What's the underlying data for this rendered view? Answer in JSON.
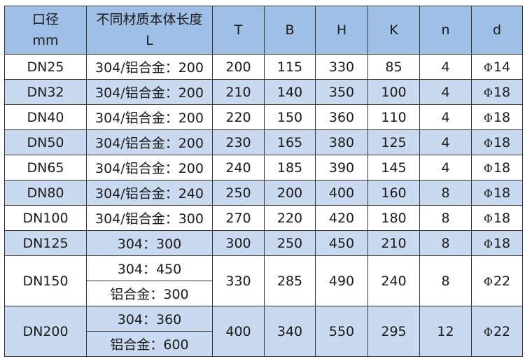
{
  "header": {
    "caliber": [
      "口径",
      "mm"
    ],
    "length": [
      "不同材质本体长度",
      "L"
    ],
    "T": "T",
    "B": "B",
    "H": "H",
    "K": "K",
    "n": "n",
    "d": "d"
  },
  "phi_symbol": "Φ",
  "rows": [
    {
      "dn": "DN25",
      "L": [
        "304/铝合金：200"
      ],
      "T": "200",
      "B": "115",
      "H": "330",
      "K": "85",
      "n": "4",
      "d": "14"
    },
    {
      "dn": "DN32",
      "L": [
        "304/铝合金：200"
      ],
      "T": "210",
      "B": "140",
      "H": "350",
      "K": "100",
      "n": "4",
      "d": "18"
    },
    {
      "dn": "DN40",
      "L": [
        "304/铝合金：200"
      ],
      "T": "220",
      "B": "150",
      "H": "360",
      "K": "110",
      "n": "4",
      "d": "18"
    },
    {
      "dn": "DN50",
      "L": [
        "304/铝合金：200"
      ],
      "T": "230",
      "B": "165",
      "H": "380",
      "K": "125",
      "n": "4",
      "d": "18"
    },
    {
      "dn": "DN65",
      "L": [
        "304/铝合金：200"
      ],
      "T": "240",
      "B": "185",
      "H": "390",
      "K": "145",
      "n": "4",
      "d": "18"
    },
    {
      "dn": "DN80",
      "L": [
        "304/铝合金：240"
      ],
      "T": "250",
      "B": "200",
      "H": "400",
      "K": "160",
      "n": "8",
      "d": "18"
    },
    {
      "dn": "DN100",
      "L": [
        "304/铝合金：300"
      ],
      "T": "270",
      "B": "220",
      "H": "420",
      "K": "180",
      "n": "8",
      "d": "18"
    },
    {
      "dn": "DN125",
      "L": [
        "304：300"
      ],
      "T": "300",
      "B": "250",
      "H": "450",
      "K": "210",
      "n": "8",
      "d": "18"
    },
    {
      "dn": "DN150",
      "L": [
        "304：450",
        "铝合金：300"
      ],
      "T": "330",
      "B": "285",
      "H": "490",
      "K": "240",
      "n": "8",
      "d": "22"
    },
    {
      "dn": "DN200",
      "L": [
        "304：360",
        "铝合金：600"
      ],
      "T": "400",
      "B": "340",
      "H": "550",
      "K": "295",
      "n": "12",
      "d": "22"
    }
  ],
  "colors": {
    "header": "#9fbfe6",
    "alt_row": "#c9daf0",
    "row": "#ffffff",
    "border": "#333333"
  }
}
